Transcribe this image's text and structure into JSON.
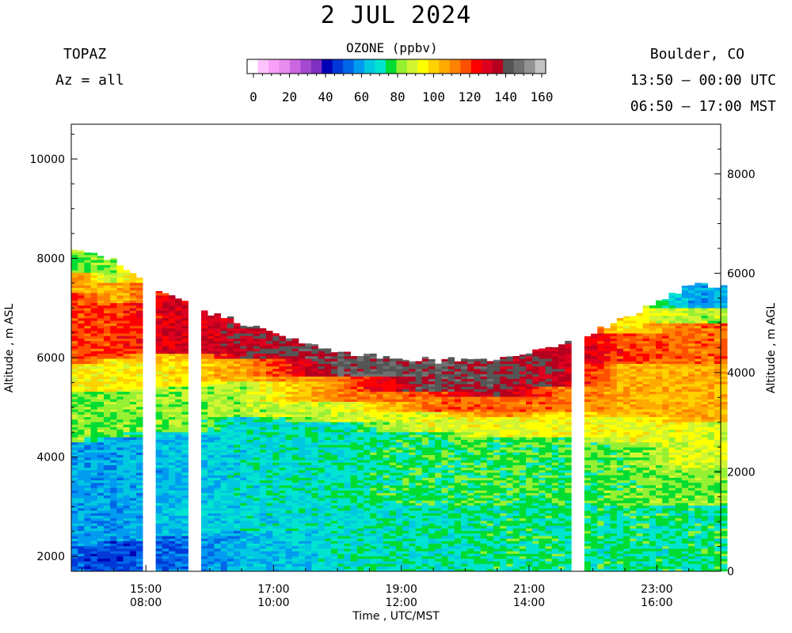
{
  "header": {
    "title": "2 JUL 2024",
    "station": "TOPAZ",
    "azimuth": "Az = all",
    "location": "Boulder, CO",
    "utc_range": "13:50 – 00:00 UTC",
    "mst_range": "06:50 – 17:00 MST"
  },
  "colorbar": {
    "title": "OZONE (ppbv)",
    "tick_labels": [
      "0",
      "20",
      "40",
      "60",
      "80",
      "100",
      "120",
      "140",
      "160"
    ],
    "colors": [
      "#ffffff",
      "#ffc4ff",
      "#f8a0f8",
      "#e88cf0",
      "#cc66e0",
      "#a54ad0",
      "#7f30c0",
      "#0000b4",
      "#0038d8",
      "#0066e8",
      "#009bf0",
      "#00c8e0",
      "#00e4d0",
      "#00dc32",
      "#96f032",
      "#d2f532",
      "#ffff00",
      "#ffd200",
      "#ffaa00",
      "#ff8200",
      "#ff5000",
      "#ff0000",
      "#dc001e",
      "#b4001e",
      "#555555",
      "#707070",
      "#929292",
      "#c3c3c3"
    ]
  },
  "chart_data": {
    "type": "heatmap",
    "title": "2 JUL 2024",
    "variable": "OZONE (ppbv)",
    "x_label": "Time , UTC/MST",
    "x_ticks_utc": [
      "15:00",
      "17:00",
      "19:00",
      "21:00",
      "23:00"
    ],
    "x_ticks_mst": [
      "08:00",
      "10:00",
      "12:00",
      "14:00",
      "16:00"
    ],
    "x_range_utc_hours": [
      13.833,
      24.0
    ],
    "y_label_left": "Altitude , m ASL",
    "y_ticks_left": [
      "2000",
      "4000",
      "6000",
      "8000",
      "10000"
    ],
    "y_range_asl_m": [
      1700,
      10700
    ],
    "y_label_right": "Altitude , m AGL",
    "y_ticks_right": [
      "0",
      "2000",
      "4000",
      "6000",
      "8000"
    ],
    "color_scale": {
      "min": 0,
      "max": 160,
      "bin_ppbv": 6.0
    },
    "data_gaps_utc_hours": [
      [
        15.0,
        15.2
      ],
      [
        15.7,
        15.85
      ],
      [
        21.65,
        21.85
      ]
    ],
    "profiles": [
      {
        "t_utc": 14.0,
        "top_m": 8150,
        "bands": [
          [
            1700,
            2200,
            55
          ],
          [
            2200,
            4300,
            65
          ],
          [
            4300,
            5300,
            85
          ],
          [
            5300,
            5900,
            100
          ],
          [
            5900,
            7300,
            125
          ],
          [
            7300,
            7700,
            110
          ],
          [
            7700,
            8150,
            85
          ]
        ]
      },
      {
        "t_utc": 14.5,
        "top_m": 7950,
        "bands": [
          [
            1700,
            2300,
            52
          ],
          [
            2300,
            4400,
            64
          ],
          [
            4400,
            5300,
            85
          ],
          [
            5300,
            6000,
            100
          ],
          [
            6000,
            7100,
            125
          ],
          [
            7100,
            7500,
            108
          ],
          [
            7500,
            7950,
            88
          ]
        ]
      },
      {
        "t_utc": 15.5,
        "top_m": 7150,
        "bands": [
          [
            1700,
            2400,
            57
          ],
          [
            2400,
            4500,
            68
          ],
          [
            4500,
            5400,
            88
          ],
          [
            5400,
            6100,
            103
          ],
          [
            6100,
            7150,
            135
          ]
        ]
      },
      {
        "t_utc": 16.5,
        "top_m": 6700,
        "bands": [
          [
            1700,
            2500,
            66
          ],
          [
            2500,
            4800,
            72
          ],
          [
            4800,
            5500,
            90
          ],
          [
            5500,
            6000,
            112
          ],
          [
            6000,
            6700,
            140
          ]
        ]
      },
      {
        "t_utc": 18.0,
        "top_m": 6100,
        "bands": [
          [
            1700,
            3000,
            74
          ],
          [
            3000,
            4700,
            76
          ],
          [
            4700,
            5100,
            93
          ],
          [
            5100,
            5600,
            118
          ],
          [
            5600,
            6100,
            148
          ]
        ]
      },
      {
        "t_utc": 19.5,
        "top_m": 5950,
        "bands": [
          [
            1700,
            3000,
            76
          ],
          [
            3000,
            4500,
            80
          ],
          [
            4500,
            4900,
            96
          ],
          [
            4900,
            5300,
            120
          ],
          [
            5300,
            5950,
            148
          ]
        ]
      },
      {
        "t_utc": 20.5,
        "top_m": 6000,
        "bands": [
          [
            1700,
            3000,
            78
          ],
          [
            3000,
            4400,
            82
          ],
          [
            4400,
            4800,
            98
          ],
          [
            4800,
            5200,
            120
          ],
          [
            5200,
            6000,
            145
          ]
        ]
      },
      {
        "t_utc": 21.5,
        "top_m": 6250,
        "bands": [
          [
            1700,
            3000,
            78
          ],
          [
            3000,
            4400,
            82
          ],
          [
            4400,
            4900,
            98
          ],
          [
            4900,
            5400,
            120
          ],
          [
            5400,
            6250,
            140
          ]
        ]
      },
      {
        "t_utc": 22.5,
        "top_m": 6800,
        "bands": [
          [
            1700,
            3000,
            78
          ],
          [
            3000,
            4300,
            84
          ],
          [
            4300,
            4800,
            98
          ],
          [
            4800,
            5900,
            110
          ],
          [
            5900,
            6500,
            125
          ],
          [
            6500,
            6800,
            100
          ]
        ]
      },
      {
        "t_utc": 23.5,
        "top_m": 7450,
        "bands": [
          [
            1700,
            3000,
            78
          ],
          [
            3000,
            3800,
            86
          ],
          [
            3800,
            4700,
            95
          ],
          [
            4700,
            5900,
            110
          ],
          [
            5900,
            6700,
            120
          ],
          [
            6700,
            7000,
            90
          ],
          [
            7000,
            7450,
            65
          ]
        ]
      }
    ]
  }
}
